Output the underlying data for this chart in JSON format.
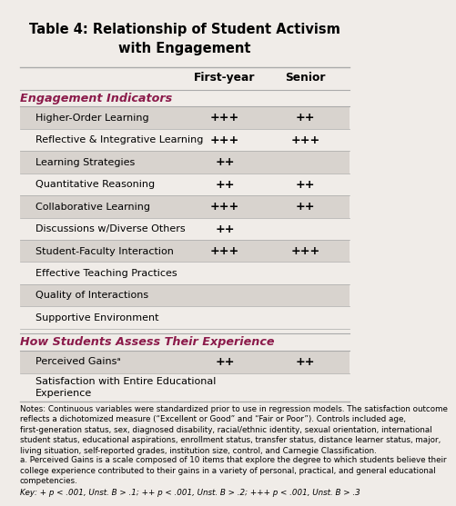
{
  "title": "Table 4: Relationship of Student Activism\nwith Engagement",
  "background_color": "#f0ece8",
  "section1_header": "Engagement Indicators",
  "section2_header": "How Students Assess Their Experience",
  "col_headers": [
    "First-year",
    "Senior"
  ],
  "section1_rows": [
    {
      "label": "Higher-Order Learning",
      "fy": "+++",
      "sr": "++",
      "shaded": true
    },
    {
      "label": "Reflective & Integrative Learning",
      "fy": "+++",
      "sr": "+++",
      "shaded": false
    },
    {
      "label": "Learning Strategies",
      "fy": "++",
      "sr": "",
      "shaded": true
    },
    {
      "label": "Quantitative Reasoning",
      "fy": "++",
      "sr": "++",
      "shaded": false
    },
    {
      "label": "Collaborative Learning",
      "fy": "+++",
      "sr": "++",
      "shaded": true
    },
    {
      "label": "Discussions w/Diverse Others",
      "fy": "++",
      "sr": "",
      "shaded": false
    },
    {
      "label": "Student-Faculty Interaction",
      "fy": "+++",
      "sr": "+++",
      "shaded": true
    },
    {
      "label": "Effective Teaching Practices",
      "fy": "",
      "sr": "",
      "shaded": false
    },
    {
      "label": "Quality of Interactions",
      "fy": "",
      "sr": "",
      "shaded": true
    },
    {
      "label": "Supportive Environment",
      "fy": "",
      "sr": "",
      "shaded": false
    }
  ],
  "section2_rows": [
    {
      "label": "Perceived Gainsᵃ",
      "fy": "++",
      "sr": "++",
      "shaded": true
    },
    {
      "label": "Satisfaction with Entire Educational\nExperience",
      "fy": "",
      "sr": "",
      "shaded": false
    }
  ],
  "notes": "Notes: Continuous variables were standardized prior to use in regression models. The satisfaction outcome\nreflects a dichotomized measure (“Excellent or Good” and “Fair or Poor”). Controls included age,\nfirst-generation status, sex, diagnosed disability, racial/ethnic identity, sexual orientation, international\nstudent status, educational aspirations, enrollment status, transfer status, distance learner status, major,\nliving situation, self-reported grades, institution size, control, and Carnegie Classification.",
  "footnote_a": "a. Perceived Gains is a scale composed of 10 items that explore the degree to which students believe their\ncollege experience contributed to their gains in a variety of personal, practical, and general educational\ncompetencies.",
  "key": "Key: + p < .001, Unst. B > .1; ++ p < .001, Unst. B > .2; +++ p < .001, Unst. B > .3",
  "header_color": "#8B1A4A",
  "shaded_row_color": "#d8d3ce",
  "border_color": "#aaaaaa"
}
